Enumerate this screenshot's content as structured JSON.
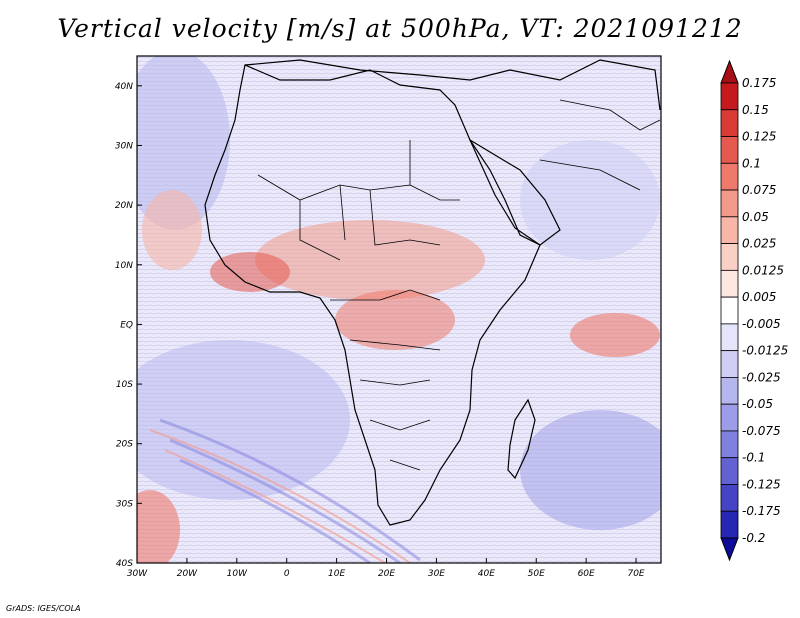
{
  "title": "Vertical velocity [m/s] at 500hPa, VT: 2021091212",
  "credit": "GrADS: IGES/COLA",
  "map": {
    "lon_range": [
      -30,
      75
    ],
    "lat_range": [
      -40,
      45
    ],
    "x_ticks": [
      "30W",
      "20W",
      "10W",
      "0",
      "10E",
      "20E",
      "30E",
      "40E",
      "50E",
      "60E",
      "70E"
    ],
    "x_tick_values": [
      -30,
      -20,
      -10,
      0,
      10,
      20,
      30,
      40,
      50,
      60,
      70
    ],
    "y_ticks": [
      "40N",
      "30N",
      "20N",
      "10N",
      "EQ",
      "10S",
      "20S",
      "30S",
      "40S"
    ],
    "y_tick_values": [
      40,
      30,
      20,
      10,
      0,
      -10,
      -20,
      -30,
      -40
    ]
  },
  "colorbar": {
    "labels": [
      "0.175",
      "0.15",
      "0.125",
      "0.1",
      "0.075",
      "0.05",
      "0.025",
      "0.0125",
      "0.005",
      "-0.005",
      "-0.0125",
      "-0.025",
      "-0.05",
      "-0.075",
      "-0.1",
      "-0.125",
      "-0.175",
      "-0.2"
    ],
    "colors": [
      "#a50f15",
      "#c41a1e",
      "#d93a34",
      "#e55a4f",
      "#ee7a6c",
      "#f39a8b",
      "#f7b6a8",
      "#fad0c5",
      "#fde7e1",
      "#ffffff",
      "#e4e4fb",
      "#cfcff5",
      "#b6b6ef",
      "#9c9ce8",
      "#8080de",
      "#6262d2",
      "#4444c4",
      "#2626b2",
      "#0c0c99"
    ]
  },
  "colors": {
    "positive": "#d93a34",
    "negative": "#6262d2",
    "coast": "#000000"
  }
}
